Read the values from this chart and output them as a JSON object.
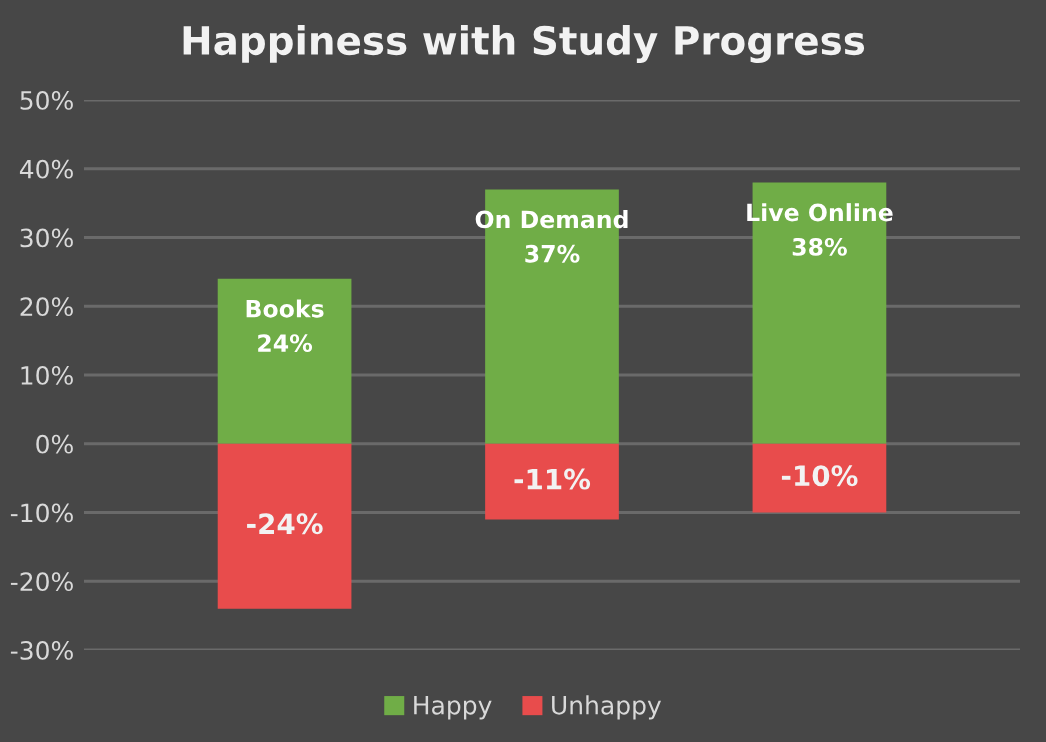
{
  "chart_data": {
    "type": "bar",
    "title": "Happiness with Study Progress",
    "stacked": true,
    "categories": [
      "Books",
      "On Demand",
      "Live Online"
    ],
    "series": [
      {
        "name": "Happy",
        "color": "#70ad47",
        "values": [
          24,
          37,
          38
        ],
        "value_labels": [
          "24%",
          "37%",
          "38%"
        ]
      },
      {
        "name": "Unhappy",
        "color": "#e84c4c",
        "values": [
          -24,
          -11,
          -10
        ],
        "value_labels": [
          "-24%",
          "-11%",
          "-10%"
        ]
      }
    ],
    "ylim": [
      -30,
      50
    ],
    "yticks": [
      {
        "value": -30,
        "label": "-30%"
      },
      {
        "value": -20,
        "label": "-20%"
      },
      {
        "value": -10,
        "label": "-10%"
      },
      {
        "value": 0,
        "label": "0%"
      },
      {
        "value": 10,
        "label": "10%"
      },
      {
        "value": 20,
        "label": "20%"
      },
      {
        "value": 30,
        "label": "30%"
      },
      {
        "value": 40,
        "label": "40%"
      },
      {
        "value": 50,
        "label": "50%"
      }
    ],
    "tick_labels": "y",
    "grid": "y",
    "legend": "bottom"
  }
}
